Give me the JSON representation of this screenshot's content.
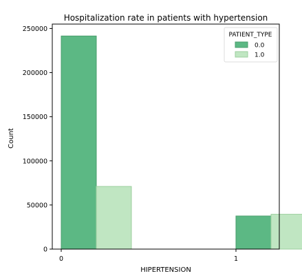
{
  "chart_data": {
    "type": "bar",
    "title": "Hospitalization rate in patients with hypertension",
    "xlabel": "HIPERTENSION",
    "ylabel": "Count",
    "categories": [
      "0",
      "1"
    ],
    "ylim": [
      0,
      255000
    ],
    "yticks": [
      0,
      50000,
      100000,
      150000,
      200000,
      250000
    ],
    "legend": {
      "title": "PATIENT_TYPE",
      "placement": "top-right"
    },
    "series": [
      {
        "name": "0.0",
        "values": [
          241500,
          37500
        ],
        "color": "#5cb884"
      },
      {
        "name": "1.0",
        "values": [
          71000,
          39500
        ],
        "color": "#c0e6c2"
      }
    ],
    "grid": false
  }
}
